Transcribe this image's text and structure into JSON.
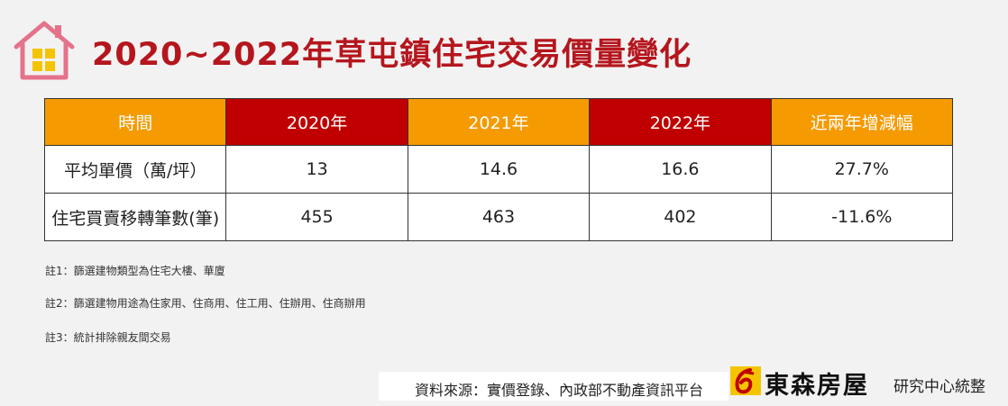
{
  "title": "2020~2022年草屯鎮住宅交易價量變化",
  "colors": {
    "title": "#b5161d",
    "header_orange": "#f59a00",
    "header_red": "#c00000",
    "positive": "#d7262d",
    "negative": "#1f9a46"
  },
  "icons": {
    "house": "house-icon",
    "logo": "company-logo-icon"
  },
  "chart_data": {
    "type": "table",
    "columns": [
      "時間",
      "2020年",
      "2021年",
      "2022年",
      "近兩年增減幅"
    ],
    "rows": [
      {
        "label": "平均單價（萬/坪）",
        "values": [
          "13",
          "14.6",
          "16.6"
        ],
        "change": "27.7%"
      },
      {
        "label": "住宅買賣移轉筆數(筆)",
        "values": [
          "455",
          "463",
          "402"
        ],
        "change": "-11.6%"
      }
    ]
  },
  "notes": [
    "註1：篩選建物類型為住宅大樓、華廈",
    "註2：篩選建物用途為住家用、住商用、住工用、住辦用、住商辦用",
    "註3：統計排除親友間交易"
  ],
  "footer": {
    "source": "資料來源：實價登錄、內政部不動產資訊平台",
    "brand": "東森房屋",
    "brand_sub": "研究中心統整"
  }
}
